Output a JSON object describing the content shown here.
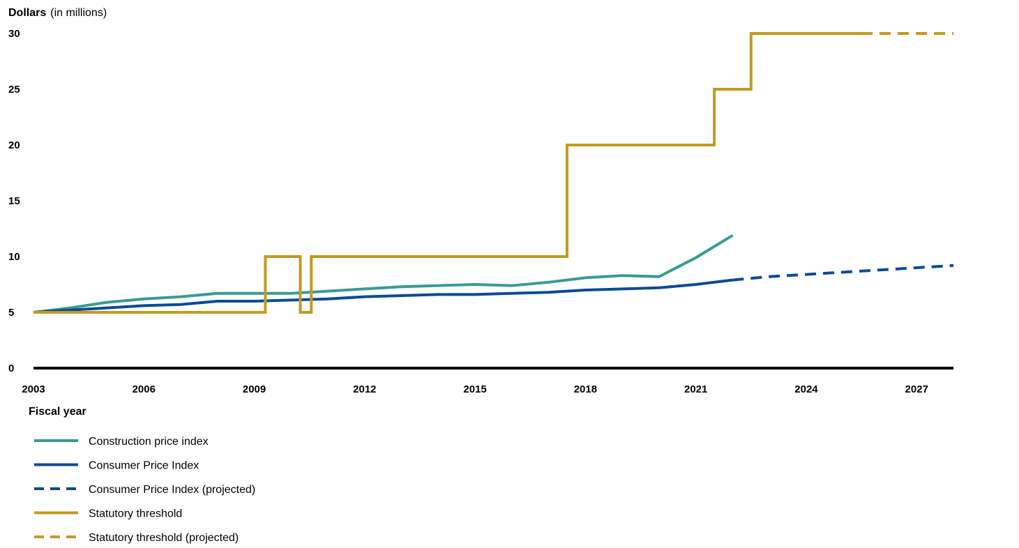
{
  "chart_data": {
    "type": "line",
    "ylabel": "Dollars",
    "ylabel_unit": "(in millions)",
    "xlabel": "Fiscal year",
    "xlim": [
      2003,
      2028
    ],
    "ylim": [
      0,
      30
    ],
    "y_ticks": [
      "0",
      "5",
      "10",
      "15",
      "20",
      "25",
      "30"
    ],
    "x_ticks": [
      "2003",
      "2006",
      "2009",
      "2012",
      "2015",
      "2018",
      "2021",
      "2024",
      "2027"
    ],
    "grid": false,
    "legend_position": "bottom-left",
    "colors": {
      "construction": "#3a9a94",
      "cpi": "#0a4b96",
      "threshold": "#c29a20",
      "axis": "#000000"
    },
    "series": [
      {
        "name": "Construction price index",
        "key": "construction",
        "dashed": false,
        "x": [
          2003,
          2004,
          2005,
          2006,
          2007,
          2008,
          2009,
          2010,
          2011,
          2012,
          2013,
          2014,
          2015,
          2016,
          2017,
          2018,
          2019,
          2020,
          2021,
          2022
        ],
        "y": [
          5.0,
          5.4,
          5.9,
          6.2,
          6.4,
          6.7,
          6.7,
          6.7,
          6.9,
          7.1,
          7.3,
          7.4,
          7.5,
          7.4,
          7.7,
          8.1,
          8.3,
          8.2,
          9.9,
          11.9
        ]
      },
      {
        "name": "Consumer Price Index",
        "key": "cpi",
        "dashed": false,
        "x": [
          2003,
          2004,
          2005,
          2006,
          2007,
          2008,
          2009,
          2010,
          2011,
          2012,
          2013,
          2014,
          2015,
          2016,
          2017,
          2018,
          2019,
          2020,
          2021,
          2022
        ],
        "y": [
          5.0,
          5.2,
          5.4,
          5.6,
          5.7,
          6.0,
          6.0,
          6.1,
          6.2,
          6.4,
          6.5,
          6.6,
          6.6,
          6.7,
          6.8,
          7.0,
          7.1,
          7.2,
          7.5,
          7.9
        ]
      },
      {
        "name": "Consumer Price Index (projected)",
        "key": "cpi",
        "dashed": true,
        "x": [
          2022,
          2023,
          2024,
          2025,
          2026,
          2027,
          2028
        ],
        "y": [
          7.9,
          8.2,
          8.4,
          8.6,
          8.8,
          9.0,
          9.2
        ]
      },
      {
        "name": "Statutory threshold",
        "key": "threshold",
        "dashed": false,
        "x": [
          2003,
          2009.3,
          2009.3,
          2010.25,
          2010.25,
          2010.55,
          2010.55,
          2017.5,
          2017.5,
          2021.5,
          2021.5,
          2022.5,
          2022.5,
          2025.5
        ],
        "y": [
          5,
          5,
          10,
          10,
          5,
          5,
          10,
          10,
          20,
          20,
          25,
          25,
          30,
          30
        ]
      },
      {
        "name": "Statutory threshold (projected)",
        "key": "threshold",
        "dashed": true,
        "x": [
          2025.5,
          2028
        ],
        "y": [
          30,
          30
        ]
      }
    ]
  }
}
